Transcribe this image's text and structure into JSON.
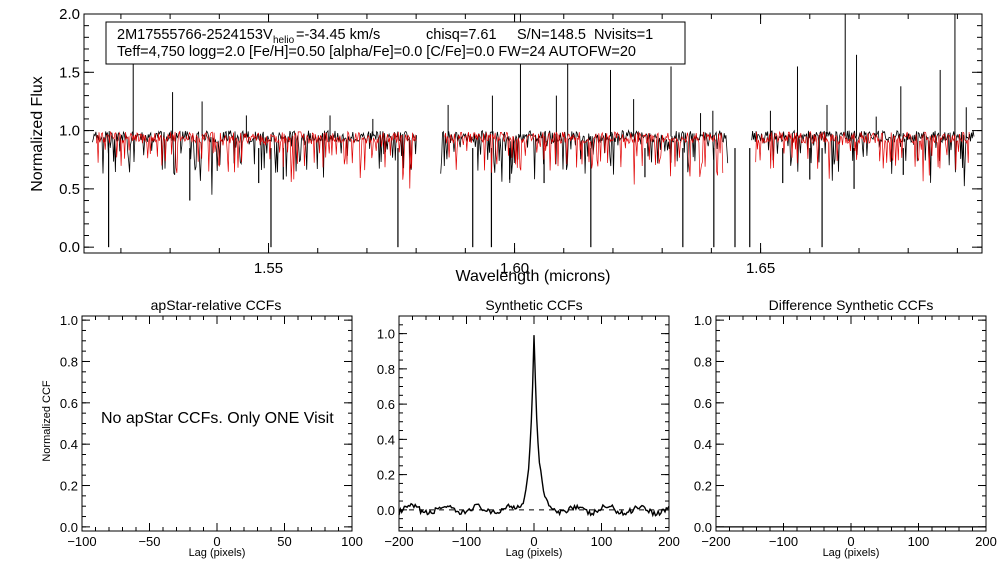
{
  "chart_data": [
    {
      "type": "line",
      "ylabel": "Normalized Flux",
      "xlabel": "Wavelength (microns)",
      "xlim": [
        1.5125,
        1.695
      ],
      "ylim": [
        -0.05,
        2.0
      ],
      "xticks": [
        1.55,
        1.6,
        1.65
      ],
      "xtick_labels": [
        "1.55",
        "1.60",
        "1.65"
      ],
      "yticks": [
        0.0,
        0.5,
        1.0,
        1.5,
        2.0
      ],
      "ytick_labels": [
        "0.0",
        "0.5",
        "1.0",
        "1.5",
        "2.0"
      ],
      "info_box": {
        "star_id": "2M17555766-2524153",
        "vhelio_v": "V",
        "vhelio_sub": "helio",
        "vhelio_val": "=-34.45 km/s",
        "chisq": "chisq=7.61",
        "snr": "S/N=148.5",
        "nvisits": "Nvisits=1",
        "line2": "Teff=4,750 logg=2.0 [Fe/H]=0.50 [alpha/Fe]=0.0 [C/Fe]=0.0 FW=24 AUTOFW=20"
      },
      "series": [
        {
          "color": "#000000",
          "continuum": 0.95,
          "segments": [
            [
              1.5142,
              1.5802
            ],
            [
              1.585,
              1.6435
            ],
            [
              1.6482,
              1.6935
            ]
          ],
          "spikes_up": [
            [
              1.5225,
              1.6
            ],
            [
              1.5305,
              1.33
            ],
            [
              1.5365,
              1.25
            ],
            [
              1.5455,
              1.13
            ],
            [
              1.5625,
              1.13
            ],
            [
              1.5712,
              1.1
            ],
            [
              1.5865,
              1.22
            ],
            [
              1.5955,
              1.3
            ],
            [
              1.6012,
              2.0
            ],
            [
              1.6085,
              1.3
            ],
            [
              1.6108,
              1.82
            ],
            [
              1.6195,
              1.52
            ],
            [
              1.6242,
              1.27
            ],
            [
              1.6318,
              1.55
            ],
            [
              1.6378,
              1.15
            ],
            [
              1.6403,
              1.17
            ],
            [
              1.652,
              1.17
            ],
            [
              1.6575,
              1.55
            ],
            [
              1.6635,
              1.22
            ],
            [
              1.6672,
              2.0
            ],
            [
              1.6695,
              1.65
            ],
            [
              1.6735,
              1.12
            ],
            [
              1.6785,
              1.38
            ],
            [
              1.6865,
              1.52
            ],
            [
              1.6895,
              2.0
            ],
            [
              1.6918,
              1.2
            ]
          ],
          "spikes_down": [
            [
              1.5175,
              0.0
            ],
            [
              1.5505,
              0.0
            ],
            [
              1.5763,
              0.0
            ],
            [
              1.5915,
              0.0
            ],
            [
              1.5953,
              0.0
            ],
            [
              1.6155,
              0.0
            ],
            [
              1.6342,
              0.0
            ],
            [
              1.6405,
              0.0
            ],
            [
              1.6448,
              0.0
            ],
            [
              1.6478,
              0.0
            ],
            [
              1.6625,
              0.0
            ],
            [
              1.534,
              0.4
            ],
            [
              1.548,
              0.55
            ],
            [
              1.553,
              0.58
            ],
            [
              1.599,
              0.58
            ],
            [
              1.606,
              0.55
            ],
            [
              1.6265,
              0.6
            ],
            [
              1.6545,
              0.55
            ],
            [
              1.66,
              0.58
            ],
            [
              1.669,
              0.5
            ],
            [
              1.679,
              0.62
            ]
          ]
        },
        {
          "color": "#e00000",
          "continuum": 0.94,
          "segments": [
            [
              1.515,
              1.58
            ],
            [
              1.5858,
              1.6425
            ],
            [
              1.649,
              1.6925
            ]
          ],
          "spikes_up": [],
          "spikes_down": []
        }
      ]
    },
    {
      "type": "line",
      "title": "apStar-relative CCFs",
      "ylabel": "Normalized CCF",
      "xlabel": "Lag (pixels)",
      "xlim": [
        -100,
        100
      ],
      "ylim": [
        -0.02,
        1.02
      ],
      "xticks": [
        -100,
        -50,
        0,
        50,
        100
      ],
      "xtick_labels": [
        "−100",
        "−50",
        "0",
        "50",
        "100"
      ],
      "yticks": [
        0.0,
        0.2,
        0.4,
        0.6,
        0.8,
        1.0
      ],
      "ytick_labels": [
        "0.0",
        "0.2",
        "0.4",
        "0.6",
        "0.8",
        "1.0"
      ],
      "annotation": "No apStar CCFs.  Only ONE Visit",
      "series": []
    },
    {
      "type": "line",
      "title": "Synthetic CCFs",
      "xlabel": "Lag (pixels)",
      "xlim": [
        -200,
        200
      ],
      "ylim": [
        -0.12,
        1.1
      ],
      "xticks": [
        -200,
        -100,
        0,
        100,
        200
      ],
      "xtick_labels": [
        "−200",
        "−100",
        "0",
        "100",
        "200"
      ],
      "yticks": [
        0.0,
        0.2,
        0.4,
        0.6,
        0.8,
        1.0
      ],
      "ytick_labels": [
        "0.0",
        "0.2",
        "0.4",
        "0.6",
        "0.8",
        "1.0"
      ],
      "zero_line": 0.0,
      "series": [
        {
          "color": "#000000",
          "peak_x": 0,
          "peak_y": 1.0,
          "width": 6,
          "noise": 0.02
        }
      ]
    },
    {
      "type": "line",
      "title": "Difference Synthetic CCFs",
      "xlabel": "Lag (pixels)",
      "xlim": [
        -200,
        200
      ],
      "ylim": [
        -0.02,
        1.02
      ],
      "xticks": [
        -200,
        -100,
        0,
        100,
        200
      ],
      "xtick_labels": [
        "−200",
        "−100",
        "0",
        "100",
        "200"
      ],
      "yticks": [
        0.0,
        0.2,
        0.4,
        0.6,
        0.8,
        1.0
      ],
      "ytick_labels": [
        "0.0",
        "0.2",
        "0.4",
        "0.6",
        "0.8",
        "1.0"
      ],
      "zero_line": 0.0,
      "series": []
    }
  ]
}
